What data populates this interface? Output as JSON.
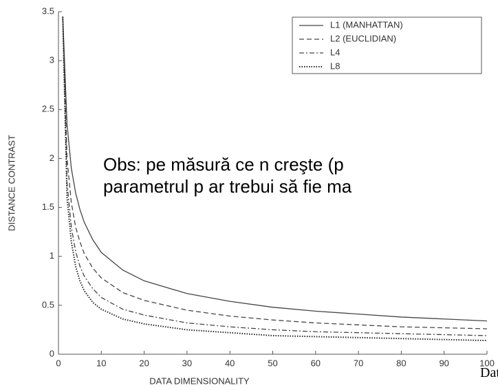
{
  "chart_data": {
    "type": "line",
    "xlabel": "DATA DIMENSIONALITY",
    "ylabel": "DISTANCE CONTRAST",
    "x": [
      1,
      2,
      3,
      4,
      5,
      6,
      8,
      10,
      15,
      20,
      30,
      40,
      50,
      60,
      70,
      80,
      90,
      100
    ],
    "series": [
      {
        "name": "L1 (MANHATTAN)",
        "color": "#444444",
        "dash": "none",
        "values": [
          3.45,
          2.35,
          1.9,
          1.65,
          1.48,
          1.35,
          1.17,
          1.04,
          0.86,
          0.75,
          0.62,
          0.54,
          0.48,
          0.44,
          0.41,
          0.38,
          0.36,
          0.34
        ]
      },
      {
        "name": "L2 (EUCLIDIAN)",
        "color": "#444444",
        "dash": "7 4",
        "values": [
          3.45,
          2.0,
          1.55,
          1.3,
          1.15,
          1.03,
          0.88,
          0.78,
          0.63,
          0.55,
          0.45,
          0.39,
          0.35,
          0.32,
          0.3,
          0.28,
          0.27,
          0.26
        ]
      },
      {
        "name": "L4",
        "color": "#444444",
        "dash": "7 3 2 3",
        "values": [
          3.45,
          1.75,
          1.3,
          1.05,
          0.9,
          0.8,
          0.67,
          0.58,
          0.46,
          0.4,
          0.32,
          0.28,
          0.25,
          0.23,
          0.22,
          0.21,
          0.2,
          0.19
        ]
      },
      {
        "name": "L8",
        "color": "#222222",
        "dash": "1.5 2",
        "values": [
          3.45,
          1.6,
          1.15,
          0.9,
          0.75,
          0.65,
          0.53,
          0.46,
          0.36,
          0.31,
          0.25,
          0.22,
          0.19,
          0.18,
          0.17,
          0.16,
          0.15,
          0.14
        ]
      }
    ],
    "xlim": [
      0,
      100
    ],
    "xticks": [
      0,
      10,
      20,
      30,
      40,
      50,
      60,
      70,
      80,
      90,
      100
    ],
    "ylim": [
      0,
      3.5
    ],
    "yticks": [
      0,
      0.5,
      1,
      1.5,
      2,
      2.5,
      3,
      3.5
    ],
    "legend": "upper right",
    "annotations": [
      "Obs:  pe măsură ce n creşte (p",
      "parametrul p ar trebui să fie ma",
      "Dat"
    ]
  }
}
